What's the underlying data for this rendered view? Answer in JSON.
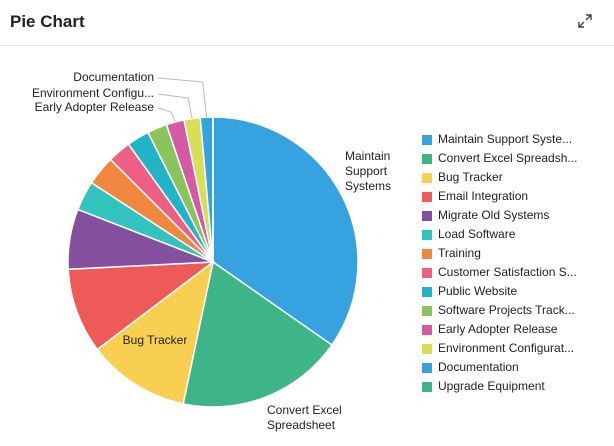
{
  "header": {
    "title": "Pie Chart"
  },
  "chart_data": {
    "type": "pie",
    "categories": [
      "Maintain Support Syste...",
      "Convert Excel Spreadsh...",
      "Bug Tracker",
      "Email Integration",
      "Migrate Old Systems",
      "Load Software",
      "Training",
      "Customer Satisfaction S...",
      "Public Website",
      "Software Projects Track...",
      "Early Adopter Release",
      "Environment Configurat...",
      "Documentation",
      "Upgrade Equipment"
    ],
    "values": [
      34.7,
      18.6,
      11.4,
      9.5,
      6.7,
      3.3,
      3.3,
      2.6,
      2.5,
      2.2,
      2.0,
      1.8,
      1.4,
      0
    ],
    "colors": [
      "#36a2e0",
      "#3db587",
      "#f8cf50",
      "#ee5a57",
      "#85509f",
      "#33c3be",
      "#f0873f",
      "#ee5f86",
      "#21b4c6",
      "#8cc45c",
      "#d45aa6",
      "#d8de55",
      "#36a2e0",
      "#3db587"
    ],
    "slice_labels": [
      [
        "Maintain",
        "Support",
        "Systems"
      ],
      [
        "Convert Excel",
        "Spreadsheet"
      ],
      [
        "Bug Tracker"
      ],
      null,
      null,
      null,
      null,
      null,
      null,
      null,
      [
        "Early Adopter Release"
      ],
      [
        "Environment Configu..."
      ],
      [
        "Documentation"
      ],
      null
    ],
    "legend": "right"
  }
}
